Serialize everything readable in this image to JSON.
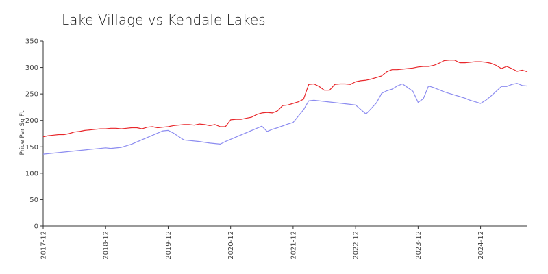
{
  "chart_data": {
    "type": "line",
    "title": "Lake Village vs Kendale Lakes",
    "xlabel": "",
    "ylabel": "Price Per Sq Ft",
    "ylim": [
      0,
      350
    ],
    "yticks": [
      0,
      50,
      100,
      150,
      200,
      250,
      300,
      350
    ],
    "xlim": [
      "2017-12",
      "2025-09"
    ],
    "xticks": [
      "2017-12",
      "2018-12",
      "2019-12",
      "2020-12",
      "2021-12",
      "2022-12",
      "2023-12",
      "2024-12"
    ],
    "grid": false,
    "legend": "none",
    "series": [
      {
        "color": "#e8262a",
        "points": [
          [
            "2017-12",
            169
          ],
          [
            "2018-01",
            171
          ],
          [
            "2018-02",
            172
          ],
          [
            "2018-03",
            173
          ],
          [
            "2018-04",
            173
          ],
          [
            "2018-05",
            175
          ],
          [
            "2018-06",
            178
          ],
          [
            "2018-07",
            179
          ],
          [
            "2018-08",
            181
          ],
          [
            "2018-09",
            182
          ],
          [
            "2018-10",
            183
          ],
          [
            "2018-11",
            184
          ],
          [
            "2018-12",
            184
          ],
          [
            "2019-01",
            185
          ],
          [
            "2019-02",
            185
          ],
          [
            "2019-03",
            184
          ],
          [
            "2019-04",
            185
          ],
          [
            "2019-05",
            186
          ],
          [
            "2019-06",
            186
          ],
          [
            "2019-07",
            184
          ],
          [
            "2019-08",
            187
          ],
          [
            "2019-09",
            188
          ],
          [
            "2019-10",
            186
          ],
          [
            "2019-11",
            187
          ],
          [
            "2019-12",
            188
          ],
          [
            "2020-01",
            190
          ],
          [
            "2020-02",
            191
          ],
          [
            "2020-03",
            192
          ],
          [
            "2020-04",
            192
          ],
          [
            "2020-05",
            191
          ],
          [
            "2020-06",
            193
          ],
          [
            "2020-07",
            192
          ],
          [
            "2020-08",
            190
          ],
          [
            "2020-09",
            192
          ],
          [
            "2020-10",
            188
          ],
          [
            "2020-11",
            188
          ],
          [
            "2020-12",
            201
          ],
          [
            "2021-01",
            202
          ],
          [
            "2021-02",
            202
          ],
          [
            "2021-03",
            204
          ],
          [
            "2021-04",
            206
          ],
          [
            "2021-05",
            211
          ],
          [
            "2021-06",
            214
          ],
          [
            "2021-07",
            215
          ],
          [
            "2021-08",
            214
          ],
          [
            "2021-09",
            218
          ],
          [
            "2021-10",
            228
          ],
          [
            "2021-11",
            229
          ],
          [
            "2021-12",
            232
          ],
          [
            "2022-01",
            235
          ],
          [
            "2022-02",
            240
          ],
          [
            "2022-03",
            268
          ],
          [
            "2022-04",
            269
          ],
          [
            "2022-05",
            264
          ],
          [
            "2022-06",
            257
          ],
          [
            "2022-07",
            257
          ],
          [
            "2022-08",
            268
          ],
          [
            "2022-09",
            269
          ],
          [
            "2022-10",
            269
          ],
          [
            "2022-11",
            268
          ],
          [
            "2022-12",
            273
          ],
          [
            "2023-01",
            275
          ],
          [
            "2023-02",
            276
          ],
          [
            "2023-03",
            278
          ],
          [
            "2023-04",
            281
          ],
          [
            "2023-05",
            284
          ],
          [
            "2023-06",
            292
          ],
          [
            "2023-07",
            296
          ],
          [
            "2023-08",
            296
          ],
          [
            "2023-09",
            297
          ],
          [
            "2023-10",
            298
          ],
          [
            "2023-11",
            299
          ],
          [
            "2023-12",
            301
          ],
          [
            "2024-01",
            302
          ],
          [
            "2024-02",
            302
          ],
          [
            "2024-03",
            304
          ],
          [
            "2024-04",
            308
          ],
          [
            "2024-05",
            313
          ],
          [
            "2024-06",
            314
          ],
          [
            "2024-07",
            314
          ],
          [
            "2024-08",
            309
          ],
          [
            "2024-09",
            309
          ],
          [
            "2024-10",
            310
          ],
          [
            "2024-11",
            311
          ],
          [
            "2024-12",
            311
          ],
          [
            "2025-01",
            310
          ],
          [
            "2025-02",
            308
          ],
          [
            "2025-03",
            304
          ],
          [
            "2025-04",
            298
          ],
          [
            "2025-05",
            302
          ],
          [
            "2025-06",
            298
          ],
          [
            "2025-07",
            293
          ],
          [
            "2025-08",
            295
          ],
          [
            "2025-09",
            292
          ]
        ]
      },
      {
        "color": "#8c8cf0",
        "points": [
          [
            "2017-12",
            136
          ],
          [
            "2018-12",
            148
          ],
          [
            "2019-01",
            147
          ],
          [
            "2019-03",
            149
          ],
          [
            "2019-05",
            155
          ],
          [
            "2019-11",
            180
          ],
          [
            "2019-12",
            181
          ],
          [
            "2020-01",
            176
          ],
          [
            "2020-03",
            163
          ],
          [
            "2020-06",
            160
          ],
          [
            "2020-08",
            157
          ],
          [
            "2020-10",
            155
          ],
          [
            "2020-11",
            160
          ],
          [
            "2021-06",
            189
          ],
          [
            "2021-07",
            179
          ],
          [
            "2021-08",
            183
          ],
          [
            "2021-09",
            186
          ],
          [
            "2021-11",
            193
          ],
          [
            "2021-12",
            196
          ],
          [
            "2022-02",
            220
          ],
          [
            "2022-03",
            237
          ],
          [
            "2022-04",
            238
          ],
          [
            "2022-12",
            229
          ],
          [
            "2023-02",
            212
          ],
          [
            "2023-04",
            233
          ],
          [
            "2023-05",
            251
          ],
          [
            "2023-06",
            256
          ],
          [
            "2023-07",
            259
          ],
          [
            "2023-08",
            265
          ],
          [
            "2023-09",
            269
          ],
          [
            "2023-10",
            262
          ],
          [
            "2023-11",
            255
          ],
          [
            "2023-12",
            234
          ],
          [
            "2024-01",
            241
          ],
          [
            "2024-02",
            265
          ],
          [
            "2024-03",
            262
          ],
          [
            "2024-04",
            258
          ],
          [
            "2024-05",
            254
          ],
          [
            "2024-06",
            251
          ],
          [
            "2024-07",
            248
          ],
          [
            "2024-08",
            245
          ],
          [
            "2024-09",
            242
          ],
          [
            "2024-10",
            238
          ],
          [
            "2024-11",
            235
          ],
          [
            "2024-12",
            232
          ],
          [
            "2025-01",
            238
          ],
          [
            "2025-02",
            246
          ],
          [
            "2025-03",
            255
          ],
          [
            "2025-04",
            264
          ],
          [
            "2025-05",
            264
          ],
          [
            "2025-06",
            268
          ],
          [
            "2025-07",
            270
          ],
          [
            "2025-08",
            266
          ],
          [
            "2025-09",
            265
          ]
        ]
      }
    ]
  }
}
